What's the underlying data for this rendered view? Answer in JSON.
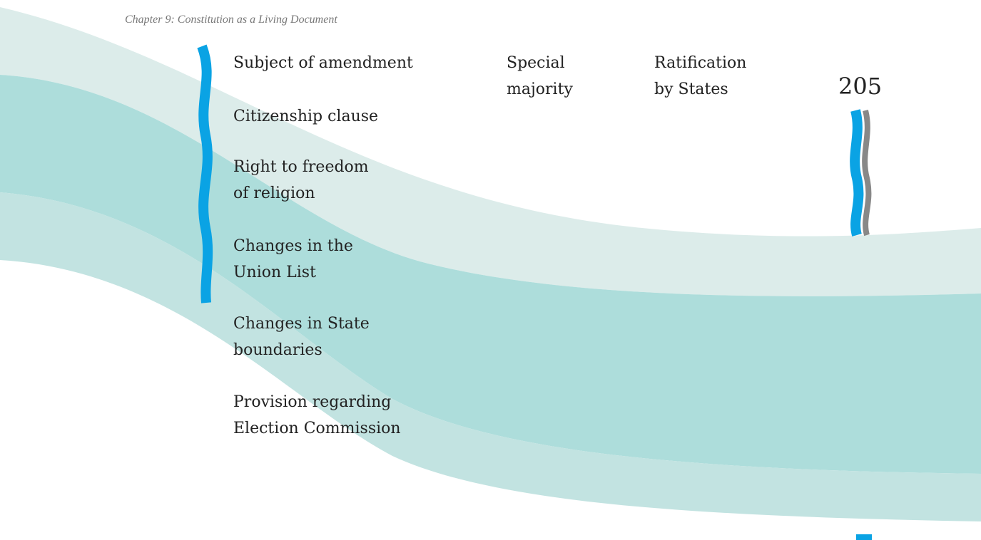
{
  "header": {
    "chapter": "Chapter 9: Constitution as a Living Document",
    "page_number": "205"
  },
  "table": {
    "headers": [
      [
        "Subject of amendment"
      ],
      [
        "Special",
        "majority"
      ],
      [
        "Ratification",
        "by States"
      ]
    ],
    "rows": [
      [
        "Citizenship clause"
      ],
      [
        "Right to freedom",
        "of religion"
      ],
      [
        "Changes in the",
        "Union List"
      ],
      [
        "Changes in State",
        "boundaries"
      ],
      [
        "Provision regarding",
        "Election Commission"
      ]
    ]
  }
}
